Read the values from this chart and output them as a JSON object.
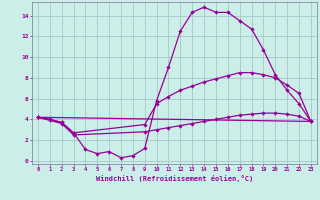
{
  "xlabel": "Windchill (Refroidissement éolien,°C)",
  "background_color": "#cceee8",
  "grid_color": "#aacccc",
  "line_color": "#990099",
  "xlim_min": -0.5,
  "xlim_max": 23.5,
  "ylim_min": -0.3,
  "ylim_max": 15.3,
  "xticks": [
    0,
    1,
    2,
    3,
    4,
    5,
    6,
    7,
    8,
    9,
    10,
    11,
    12,
    13,
    14,
    15,
    16,
    17,
    18,
    19,
    20,
    21,
    22,
    23
  ],
  "yticks": [
    0,
    2,
    4,
    6,
    8,
    10,
    12,
    14
  ],
  "series1_x": [
    0,
    1,
    2,
    3,
    4,
    5,
    6,
    7,
    8,
    9,
    10,
    11,
    12,
    13,
    14,
    15,
    16,
    17,
    18,
    19,
    20,
    21,
    22,
    23
  ],
  "series1_y": [
    4.2,
    4.0,
    3.7,
    2.7,
    1.1,
    0.7,
    0.9,
    0.3,
    0.5,
    1.2,
    5.8,
    9.0,
    12.5,
    14.3,
    14.8,
    14.3,
    14.3,
    13.5,
    12.7,
    10.7,
    8.3,
    6.8,
    5.5,
    3.8
  ],
  "series2_x": [
    0,
    1,
    2,
    3,
    9,
    10,
    11,
    12,
    13,
    14,
    15,
    16,
    17,
    18,
    19,
    20,
    21,
    22,
    23
  ],
  "series2_y": [
    4.2,
    4.0,
    3.7,
    2.7,
    3.5,
    5.5,
    6.2,
    6.8,
    7.2,
    7.6,
    7.9,
    8.2,
    8.5,
    8.5,
    8.3,
    8.0,
    7.3,
    6.5,
    3.8
  ],
  "series3_x": [
    0,
    23
  ],
  "series3_y": [
    4.2,
    3.8
  ],
  "series4_x": [
    0,
    1,
    2,
    3,
    9,
    10,
    11,
    12,
    13,
    14,
    15,
    16,
    17,
    18,
    19,
    20,
    21,
    22,
    23
  ],
  "series4_y": [
    4.2,
    3.9,
    3.6,
    2.5,
    2.8,
    3.0,
    3.2,
    3.4,
    3.6,
    3.8,
    4.0,
    4.2,
    4.4,
    4.5,
    4.6,
    4.6,
    4.5,
    4.3,
    3.8
  ]
}
